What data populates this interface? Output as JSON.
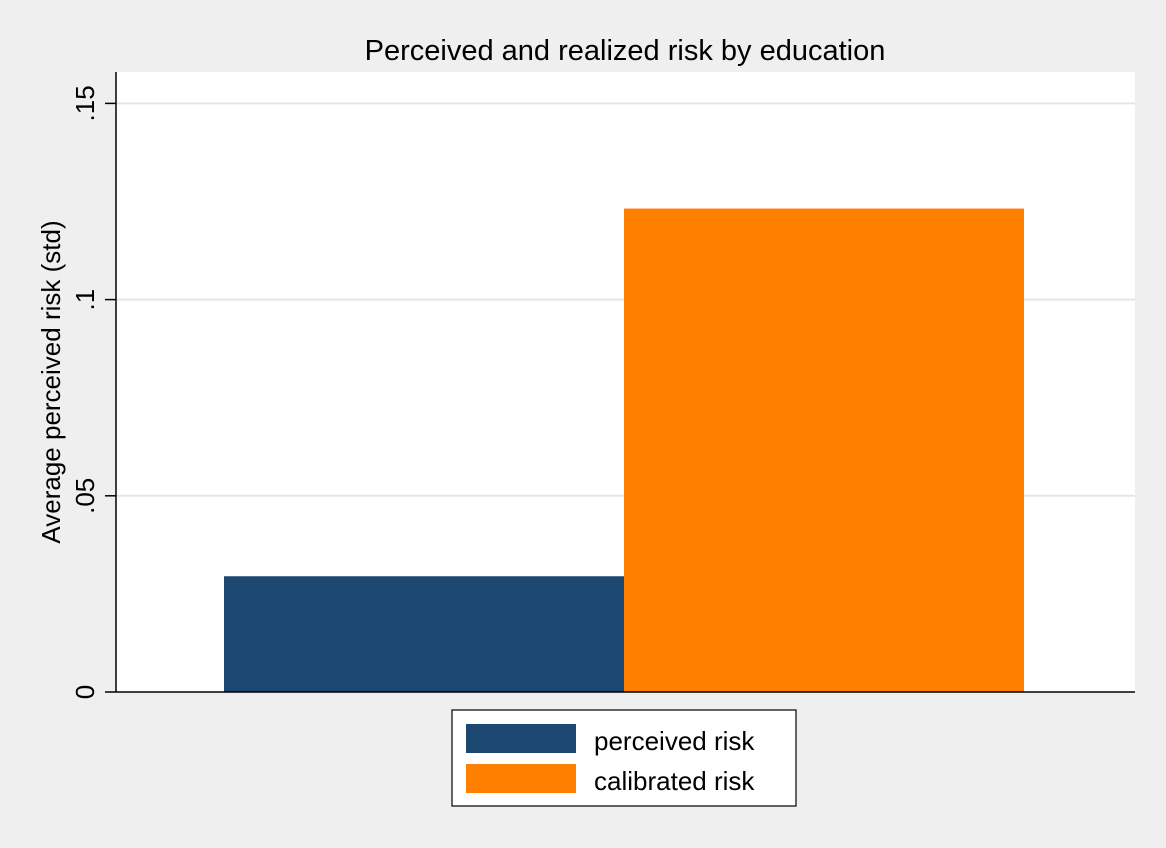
{
  "chart_data": {
    "type": "bar",
    "title": "Perceived and realized risk by education",
    "xlabel": "",
    "ylabel": "Average perceived risk (std)",
    "ylim": [
      0,
      0.158
    ],
    "yticks": [
      {
        "value": 0,
        "label": "0"
      },
      {
        "value": 0.05,
        "label": ".05"
      },
      {
        "value": 0.1,
        "label": ".1"
      },
      {
        "value": 0.15,
        "label": ".15"
      }
    ],
    "grid": true,
    "legend_position": "bottom",
    "series": [
      {
        "name": "perceived risk",
        "values": [
          0.0295
        ],
        "color": "#1c4771"
      },
      {
        "name": "calibrated risk",
        "values": [
          0.1232
        ],
        "color": "#ff7f00"
      }
    ]
  }
}
